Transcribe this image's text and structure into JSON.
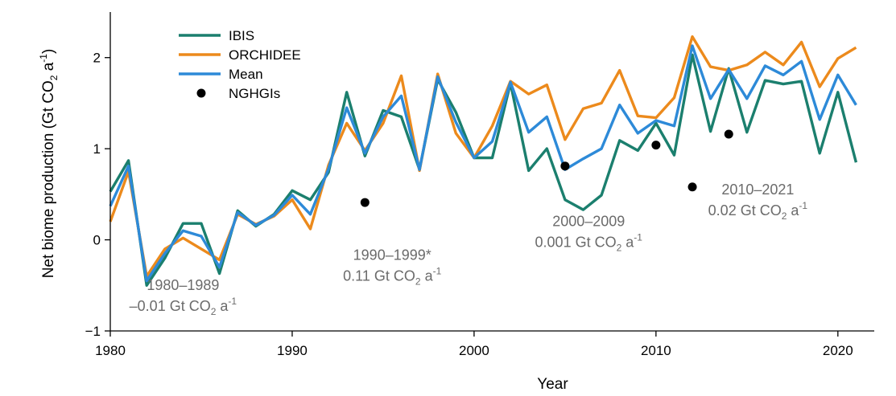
{
  "chart_data": {
    "type": "line",
    "xlabel": "Year",
    "ylabel": "Net biome production (Gt CO",
    "ylabel_sub": "2",
    "ylabel_unit": " a",
    "ylabel_sup": "-1",
    "ylabel_close": ")",
    "xlim": [
      1980,
      2022
    ],
    "ylim": [
      -1,
      2.5
    ],
    "x_ticks": [
      1980,
      1990,
      2000,
      2010,
      2020
    ],
    "x_tick_labels": [
      "1980",
      "1990",
      "2000",
      "2010",
      "2020"
    ],
    "y_ticks": [
      -1,
      0,
      1,
      2
    ],
    "y_tick_labels": [
      "−1",
      "0",
      "1",
      "2"
    ],
    "legend_position": "top-left",
    "x": [
      1980,
      1981,
      1982,
      1983,
      1984,
      1985,
      1986,
      1987,
      1988,
      1989,
      1990,
      1991,
      1992,
      1993,
      1994,
      1995,
      1996,
      1997,
      1998,
      1999,
      2000,
      2001,
      2002,
      2003,
      2004,
      2005,
      2006,
      2007,
      2008,
      2009,
      2010,
      2011,
      2012,
      2013,
      2014,
      2015,
      2016,
      2017,
      2018,
      2019,
      2020,
      2021
    ],
    "series": [
      {
        "name": "IBIS",
        "color": "#1b7f6e",
        "values": [
          0.53,
          0.87,
          -0.5,
          -0.2,
          0.18,
          0.18,
          -0.37,
          0.32,
          0.15,
          0.28,
          0.54,
          0.44,
          0.74,
          1.62,
          0.92,
          1.42,
          1.35,
          0.77,
          1.76,
          1.4,
          0.9,
          0.9,
          1.72,
          0.76,
          1.0,
          0.44,
          0.33,
          0.49,
          1.09,
          0.98,
          1.28,
          0.93,
          2.03,
          1.19,
          1.88,
          1.18,
          1.75,
          1.71,
          1.74,
          0.95,
          1.62,
          0.85
        ]
      },
      {
        "name": "ORCHIDEE",
        "color": "#ec8a1c",
        "values": [
          0.2,
          0.75,
          -0.4,
          -0.1,
          0.02,
          -0.1,
          -0.22,
          0.28,
          0.17,
          0.26,
          0.44,
          0.12,
          0.82,
          1.28,
          0.98,
          1.28,
          1.8,
          0.76,
          1.82,
          1.17,
          0.9,
          1.25,
          1.74,
          1.6,
          1.7,
          1.1,
          1.44,
          1.5,
          1.86,
          1.36,
          1.34,
          1.56,
          2.23,
          1.9,
          1.86,
          1.92,
          2.06,
          1.92,
          2.17,
          1.68,
          1.99,
          2.11
        ]
      },
      {
        "name": "Mean",
        "color": "#2d8ad8",
        "values": [
          0.37,
          0.81,
          -0.45,
          -0.15,
          0.1,
          0.04,
          -0.3,
          0.3,
          0.16,
          0.27,
          0.49,
          0.28,
          0.78,
          1.45,
          0.95,
          1.35,
          1.58,
          0.77,
          1.79,
          1.29,
          0.9,
          1.08,
          1.73,
          1.18,
          1.35,
          0.77,
          0.89,
          1.0,
          1.48,
          1.17,
          1.31,
          1.25,
          2.13,
          1.55,
          1.87,
          1.55,
          1.91,
          1.81,
          1.96,
          1.32,
          1.81,
          1.48
        ]
      },
      {
        "name": "NGHGIs",
        "color": "#000000",
        "type": "scatter",
        "points": [
          [
            1994,
            0.41
          ],
          [
            2005,
            0.81
          ],
          [
            2010,
            1.04
          ],
          [
            2012,
            0.58
          ],
          [
            2014,
            1.16
          ]
        ]
      }
    ],
    "annotations": [
      {
        "period": "1980–1989",
        "prefix": "–0.01 Gt CO",
        "sub": "2",
        "mid": " a",
        "sup": "-1",
        "x": 1984.0,
        "y1": -0.55,
        "y2": -0.78
      },
      {
        "period": "1990–1999*",
        "prefix": "0.11 Gt CO",
        "sub": "2",
        "mid": " a",
        "sup": "-1",
        "x": 1995.5,
        "y1": -0.22,
        "y2": -0.45
      },
      {
        "period": "2000–2009",
        "prefix": "0.001 Gt CO",
        "sub": "2",
        "mid": " a",
        "sup": "-1",
        "x": 2006.3,
        "y1": 0.15,
        "y2": -0.08
      },
      {
        "period": "2010–2021",
        "prefix": "0.02 Gt CO",
        "sub": "2",
        "mid": " a",
        "sup": "-1",
        "x": 2015.6,
        "y1": 0.5,
        "y2": 0.27
      }
    ]
  }
}
